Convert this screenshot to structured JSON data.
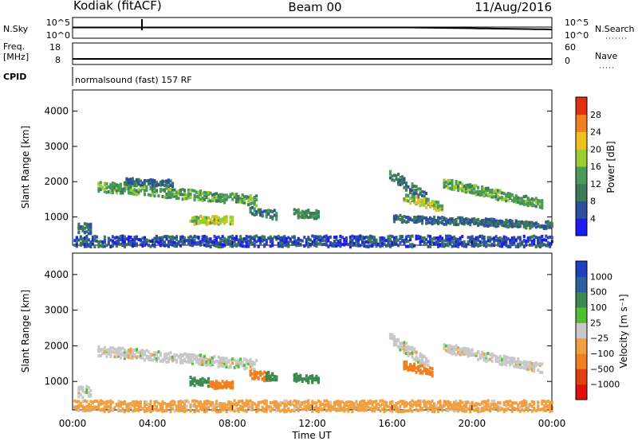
{
  "header": {
    "station": "Kodiak (fitACF)",
    "beam": "Beam 00",
    "date": "11/Aug/2016"
  },
  "noise_panel": {
    "left_label": "N.Sky",
    "left_ticks": [
      "10^5",
      "10^0"
    ],
    "right_label": "N.Search",
    "right_ticks": [
      "10^5",
      "10^0"
    ]
  },
  "freq_panel": {
    "left_label_1": "Freq.",
    "left_label_2": "[MHz]",
    "left_ticks": [
      "18",
      "8"
    ],
    "right_label": "Nave",
    "right_ticks": [
      "60",
      "0"
    ]
  },
  "cpid_panel": {
    "label": "CPID",
    "text": "normalsound (fast) 157 RF"
  },
  "colors": {
    "power_scale": [
      "#1c1cf0",
      "#2d4fa0",
      "#3c7a58",
      "#4a9a5a",
      "#9acd32",
      "#f0c020",
      "#f08020",
      "#e03010"
    ],
    "velocity_scale": [
      "#e01010",
      "#e04010",
      "#f08020",
      "#f0a040",
      "#c8c8c8",
      "#50c030",
      "#3c8a50",
      "#2d5fa0",
      "#2040c0"
    ]
  },
  "chart_data": [
    {
      "type": "heatmap",
      "panel": "power",
      "ylabel": "Slant Range [km]",
      "yticks": [
        "4000",
        "3000",
        "2000",
        "1000"
      ],
      "ylim": [
        200,
        4600
      ],
      "xlim_hours": [
        0,
        24
      ],
      "colorbar_label": "Power [dB]",
      "colorbar_ticks": [
        "28",
        "24",
        "20",
        "16",
        "12",
        "8",
        "4"
      ],
      "colorbar_range": [
        0,
        32
      ],
      "echo_regions": [
        {
          "t0": 1.2,
          "t1": 9.2,
          "range_start": 1900,
          "range_end": 1500,
          "thickness": 220,
          "power": 14
        },
        {
          "t0": 2.5,
          "t1": 5.0,
          "range_start": 2050,
          "range_end": 2000,
          "thickness": 140,
          "power": 8
        },
        {
          "t0": 5.8,
          "t1": 8.0,
          "range_start": 950,
          "range_end": 950,
          "thickness": 180,
          "power": 18
        },
        {
          "t0": 8.8,
          "t1": 10.2,
          "range_start": 1200,
          "range_end": 1100,
          "thickness": 200,
          "power": 10
        },
        {
          "t0": 11.0,
          "t1": 12.3,
          "range_start": 1150,
          "range_end": 1100,
          "thickness": 180,
          "power": 12
        },
        {
          "t0": 0.2,
          "t1": 0.9,
          "range_start": 700,
          "range_end": 700,
          "thickness": 250,
          "power": 8
        },
        {
          "t0": 15.8,
          "t1": 17.8,
          "range_start": 2300,
          "range_end": 1500,
          "thickness": 250,
          "power": 10
        },
        {
          "t0": 16.5,
          "t1": 18.5,
          "range_start": 1600,
          "range_end": 1300,
          "thickness": 180,
          "power": 18
        },
        {
          "t0": 18.5,
          "t1": 23.5,
          "range_start": 2000,
          "range_end": 1400,
          "thickness": 200,
          "power": 14
        },
        {
          "t0": 16.0,
          "t1": 24.0,
          "range_start": 1000,
          "range_end": 800,
          "thickness": 150,
          "power": 8
        },
        {
          "t0": 0.0,
          "t1": 24.0,
          "range_start": 350,
          "range_end": 350,
          "thickness": 250,
          "power": 6
        }
      ]
    },
    {
      "type": "heatmap",
      "panel": "velocity",
      "ylabel": "Slant Range [km]",
      "yticks": [
        "4000",
        "3000",
        "2000",
        "1000"
      ],
      "ylim": [
        200,
        4600
      ],
      "xlim_hours": [
        0,
        24
      ],
      "xticks": [
        "00:00",
        "04:00",
        "08:00",
        "12:00",
        "16:00",
        "20:00",
        "00:00"
      ],
      "xlabel": "Time UT",
      "colorbar_label": "Velocity [m s⁻¹]",
      "colorbar_ticks": [
        "1000",
        "500",
        "100",
        "25",
        "−25",
        "−100",
        "−500",
        "−1000"
      ],
      "echo_regions": [
        {
          "t0": 1.2,
          "t1": 9.2,
          "range_start": 1900,
          "range_end": 1500,
          "thickness": 220,
          "velocity": 0
        },
        {
          "t0": 5.8,
          "t1": 6.8,
          "range_start": 1050,
          "range_end": 1000,
          "thickness": 180,
          "velocity": 150
        },
        {
          "t0": 6.8,
          "t1": 8.0,
          "range_start": 950,
          "range_end": 950,
          "thickness": 150,
          "velocity": -300
        },
        {
          "t0": 8.8,
          "t1": 9.8,
          "range_start": 1250,
          "range_end": 1150,
          "thickness": 200,
          "velocity": -200
        },
        {
          "t0": 9.6,
          "t1": 10.2,
          "range_start": 1200,
          "range_end": 1150,
          "thickness": 180,
          "velocity": 300
        },
        {
          "t0": 11.0,
          "t1": 12.3,
          "range_start": 1150,
          "range_end": 1100,
          "thickness": 180,
          "velocity": 150
        },
        {
          "t0": 0.2,
          "t1": 0.9,
          "range_start": 750,
          "range_end": 750,
          "thickness": 250,
          "velocity": 0
        },
        {
          "t0": 15.8,
          "t1": 17.8,
          "range_start": 2300,
          "range_end": 1500,
          "thickness": 250,
          "velocity": 0
        },
        {
          "t0": 16.5,
          "t1": 18.0,
          "range_start": 1500,
          "range_end": 1300,
          "thickness": 180,
          "velocity": -200
        },
        {
          "t0": 18.5,
          "t1": 23.5,
          "range_start": 2000,
          "range_end": 1400,
          "thickness": 200,
          "velocity": 0
        },
        {
          "t0": 0.0,
          "t1": 24.0,
          "range_start": 350,
          "range_end": 350,
          "thickness": 250,
          "velocity": -50
        }
      ]
    }
  ]
}
